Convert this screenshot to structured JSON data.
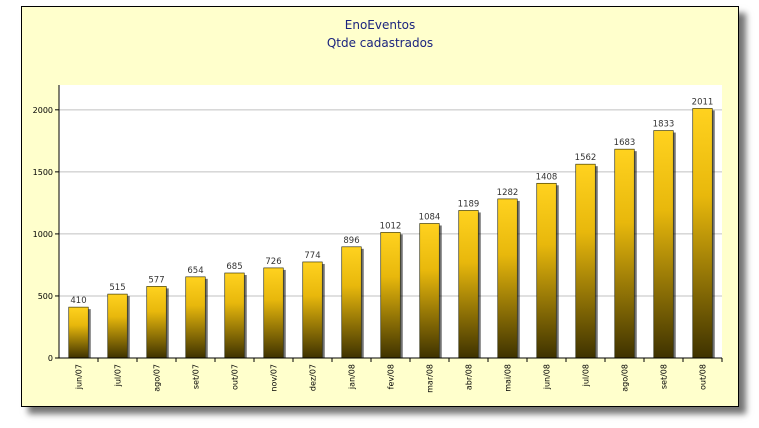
{
  "chart_data": {
    "type": "bar",
    "title": "EnoEventos",
    "subtitle": "Qtde cadastrados",
    "xlabel": "",
    "ylabel": "",
    "categories": [
      "jun/07",
      "jul/07",
      "ago/07",
      "set/07",
      "out/07",
      "nov/07",
      "dez/07",
      "jan/08",
      "fev/08",
      "mar/08",
      "abr/08",
      "mai/08",
      "jun/08",
      "jul/08",
      "ago/08",
      "set/08",
      "out/08"
    ],
    "values": [
      410,
      515,
      577,
      654,
      685,
      726,
      774,
      896,
      1012,
      1084,
      1189,
      1282,
      1408,
      1562,
      1683,
      1833,
      2011
    ],
    "ylim": [
      0,
      2200
    ],
    "yticks": [
      0,
      500,
      1000,
      1500,
      2000
    ],
    "grid": true,
    "legend": "none",
    "colors": {
      "bar_top": "#ffd21f",
      "bar_bottom": "#3e3200",
      "frame_background": "#ffffcc",
      "plot_background": "#ffffff",
      "gridline": "#c0c0c0",
      "title": "#1a237e"
    }
  }
}
